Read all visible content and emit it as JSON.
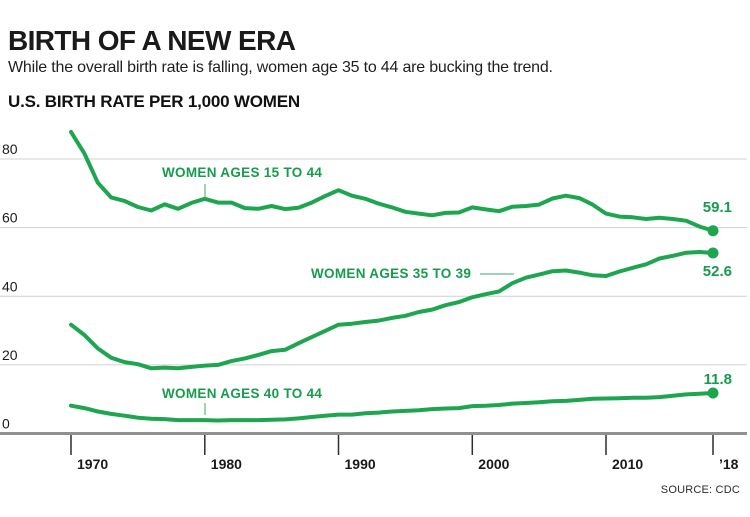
{
  "header": {
    "title": "BIRTH OF A NEW ERA",
    "subtitle": "While the overall birth rate is falling, women age 35 to 44 are bucking the trend.",
    "chart_label": "U.S. BIRTH RATE PER 1,000 WOMEN"
  },
  "source": "SOURCE: CDC",
  "colors": {
    "line_green": "#1ea550",
    "label_green": "#179c4b",
    "leader_green": "#9bd6b1",
    "grid": "#d0d0d0",
    "axis": "#909090",
    "tick": "#2e2e2e",
    "text_dark": "#1a1a1a"
  },
  "chart_data": {
    "type": "line",
    "title": "U.S. BIRTH RATE PER 1,000 WOMEN",
    "x_start": 1970,
    "x_end": 2018,
    "x_step": 1,
    "ylim": [
      0,
      90
    ],
    "grid": true,
    "grid_values": [
      0,
      20,
      40,
      60,
      80
    ],
    "y_tick_labels": [
      "0",
      "20",
      "40",
      "60",
      "80"
    ],
    "x_ticks": [
      {
        "year": 1970,
        "label": "1970"
      },
      {
        "year": 1980,
        "label": "1980"
      },
      {
        "year": 1990,
        "label": "1990"
      },
      {
        "year": 2000,
        "label": "2000"
      },
      {
        "year": 2010,
        "label": "2010"
      },
      {
        "year": 2018,
        "label": "’18"
      }
    ],
    "legend_position": "inline-annotations",
    "series": [
      {
        "id": "15-44",
        "name": "WOMEN AGES 15 TO 44",
        "end_label": "59.1",
        "end_value": 59.1,
        "values": [
          87.9,
          81.6,
          73.1,
          68.8,
          67.8,
          66.0,
          65.0,
          66.8,
          65.5,
          67.2,
          68.4,
          67.3,
          67.3,
          65.7,
          65.5,
          66.3,
          65.4,
          65.8,
          67.3,
          69.2,
          70.9,
          69.3,
          68.4,
          67.0,
          65.9,
          64.6,
          64.1,
          63.6,
          64.3,
          64.4,
          65.9,
          65.3,
          64.8,
          66.1,
          66.3,
          66.7,
          68.5,
          69.3,
          68.6,
          66.7,
          64.1,
          63.2,
          63.0,
          62.5,
          62.9,
          62.5,
          62.0,
          60.3,
          59.1
        ]
      },
      {
        "id": "35-39",
        "name": "WOMEN AGES 35 TO 39",
        "end_label": "52.6",
        "end_value": 52.6,
        "values": [
          31.7,
          28.7,
          24.8,
          22.1,
          20.8,
          20.2,
          19.0,
          19.2,
          19.0,
          19.4,
          19.8,
          20.0,
          21.1,
          21.9,
          22.9,
          24.0,
          24.4,
          26.3,
          28.1,
          29.9,
          31.7,
          32.0,
          32.5,
          32.9,
          33.7,
          34.3,
          35.4,
          36.1,
          37.4,
          38.3,
          39.7,
          40.6,
          41.4,
          43.8,
          45.4,
          46.3,
          47.3,
          47.5,
          46.9,
          46.1,
          45.9,
          47.2,
          48.3,
          49.3,
          51.0,
          51.8,
          52.7,
          52.9,
          52.6
        ]
      },
      {
        "id": "40-44",
        "name": "WOMEN AGES 40 TO 44",
        "end_label": "11.8",
        "end_value": 11.8,
        "values": [
          8.1,
          7.4,
          6.4,
          5.7,
          5.2,
          4.6,
          4.3,
          4.2,
          3.9,
          3.9,
          3.9,
          3.8,
          3.9,
          3.9,
          3.9,
          4.0,
          4.1,
          4.4,
          4.8,
          5.2,
          5.5,
          5.5,
          5.9,
          6.1,
          6.4,
          6.6,
          6.8,
          7.1,
          7.3,
          7.4,
          8.0,
          8.1,
          8.3,
          8.7,
          8.9,
          9.1,
          9.4,
          9.5,
          9.8,
          10.1,
          10.2,
          10.3,
          10.4,
          10.4,
          10.6,
          11.0,
          11.4,
          11.6,
          11.8
        ]
      }
    ]
  }
}
